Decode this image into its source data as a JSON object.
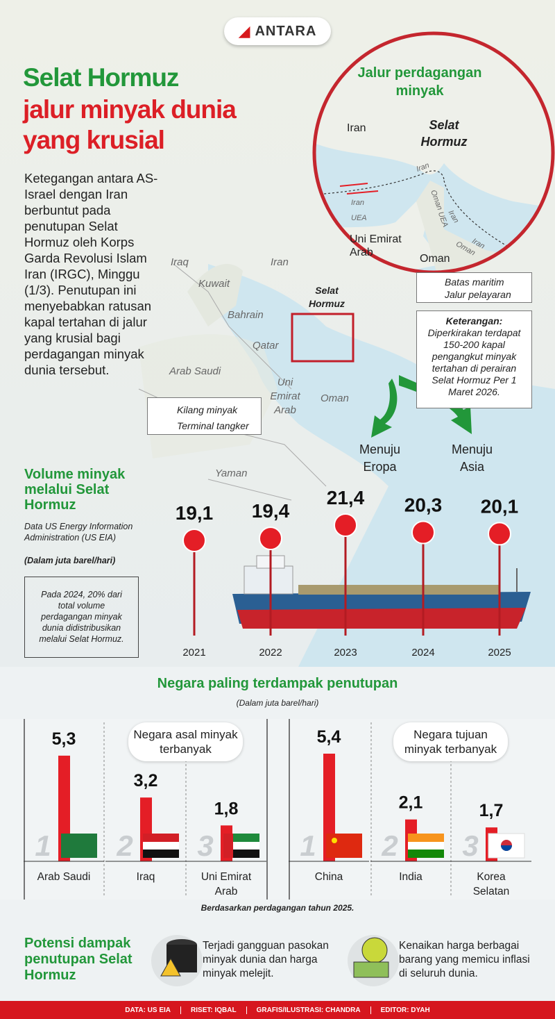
{
  "header": {
    "logo": "ANTARA",
    "title_line1": "Selat Hormuz",
    "title_line2": "jalur minyak dunia",
    "title_line3": "yang krusial"
  },
  "intro": "Ketegangan antara AS-Israel dengan Iran berbuntut pada penutupan Selat Hormuz oleh Korps Garda Revolusi Islam Iran (IRGC), Minggu (1/3). Penutupan ini menyebabkan ratusan kapal tertahan di jalur yang krusial bagi perdagangan minyak dunia tersebut.",
  "map": {
    "labels": [
      "Iraq",
      "Iran",
      "Kuwait",
      "Bahrain",
      "Qatar",
      "Arab Saudi",
      "Uni Emirat Arab",
      "Oman",
      "Yaman"
    ],
    "strait": "Selat Hormuz",
    "legend": [
      "Kilang minyak",
      "Terminal tangker"
    ],
    "arrows": [
      "Menuju Eropa",
      "Menuju Asia"
    ],
    "circle": {
      "title": "Jalur perdagangan minyak",
      "strait": "Selat Hormuz",
      "labels": [
        "Iran",
        "Uni Emirat Arab",
        "Oman",
        "Iran",
        "Iran",
        "UEA",
        "Oman",
        "UEA",
        "Iran",
        "Iran",
        "Oman"
      ]
    },
    "line_legend": [
      "Batas maritim",
      "Jalur pelayaran"
    ],
    "note_title": "Keterangan:",
    "note": "Diperkirakan terdapat 150-200 kapal pengangkut minyak tertahan di perairan Selat Hormuz Per 1 Maret 2026."
  },
  "chart_data": [
    {
      "type": "pin",
      "title": "Volume minyak melalui Selat Hormuz",
      "source": "Data US Energy Information Administration (US EIA)",
      "unit": "(Dalam juta barel/hari)",
      "note": "Pada 2024, 20% dari total volume perdagangan minyak dunia didistribusikan melalui Selat Hormuz.",
      "categories": [
        "2021",
        "2022",
        "2023",
        "2024",
        "2025"
      ],
      "values": [
        19.1,
        19.4,
        21.4,
        20.3,
        20.1
      ],
      "value_labels": [
        "19,1",
        "19,4",
        "21,4",
        "20,3",
        "20,1"
      ],
      "color": "#e41e26"
    },
    {
      "type": "bar",
      "title": "Negara paling terdampak penutupan",
      "subtitle": "(Dalam juta barel/hari)",
      "note": "Berdasarkan perdagangan tahun 2025.",
      "color": "#e41e26",
      "panels": [
        {
          "label": "Negara asal minyak terbanyak",
          "categories": [
            "Arab Saudi",
            "Iraq",
            "Uni Emirat Arab"
          ],
          "ranks": [
            1,
            2,
            3
          ],
          "values": [
            5.3,
            3.2,
            1.8
          ],
          "value_labels": [
            "5,3",
            "3,2",
            "1,8"
          ]
        },
        {
          "label": "Negara tujuan minyak terbanyak",
          "categories": [
            "China",
            "India",
            "Korea Selatan"
          ],
          "ranks": [
            1,
            2,
            3
          ],
          "values": [
            5.4,
            2.1,
            1.7
          ],
          "value_labels": [
            "5,4",
            "2,1",
            "1,7"
          ]
        }
      ]
    }
  ],
  "impact": {
    "title": "Potensi dampak penutupan Selat Hormuz",
    "items": [
      "Terjadi gangguan pasokan minyak dunia dan harga minyak melejit.",
      "Kenaikan harga berbagai barang yang memicu inflasi di seluruh dunia."
    ]
  },
  "footer": [
    "DATA: US EIA",
    "RISET: IQBAL",
    "GRAFIS/ILUSTRASI: CHANDRA",
    "EDITOR: DYAH"
  ]
}
